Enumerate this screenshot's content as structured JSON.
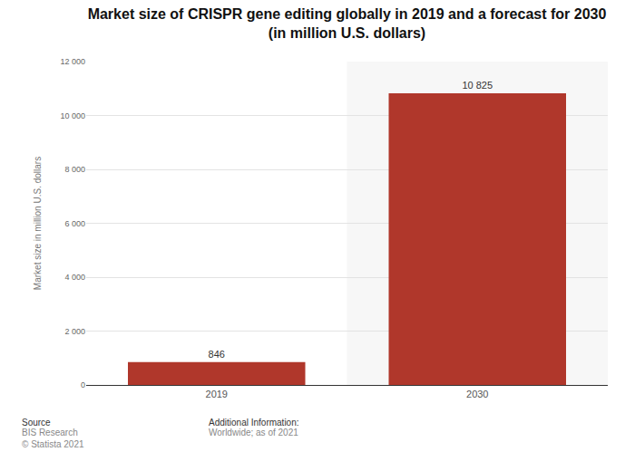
{
  "chart_data": {
    "type": "bar",
    "title": "Market size of CRISPR gene editing globally in 2019 and a forecast for 2030\n(in million U.S. dollars)",
    "y_label": "Market size in million U.S. dollars",
    "categories": [
      "2019",
      "2030"
    ],
    "values": [
      846,
      10825
    ],
    "value_labels": [
      "846",
      "10 825"
    ],
    "data_labels": true,
    "color": "#b0372b",
    "ylim": [
      0,
      12000
    ],
    "yticks": [
      0,
      {
        "value": 2000,
        "label": "2 000"
      },
      {
        "value": 4000,
        "label": "4 000"
      },
      {
        "value": 6000,
        "label": "6 000"
      },
      {
        "value": 8000,
        "label": "8 000"
      },
      {
        "value": 10000,
        "label": "10 000"
      },
      {
        "value": 12000,
        "label": "12 000"
      }
    ],
    "grid": true,
    "annotations": [
      "Source",
      "BIS Research",
      "© Statista 2021",
      "Additional Information:",
      "Worldwide; as of 2021"
    ]
  }
}
